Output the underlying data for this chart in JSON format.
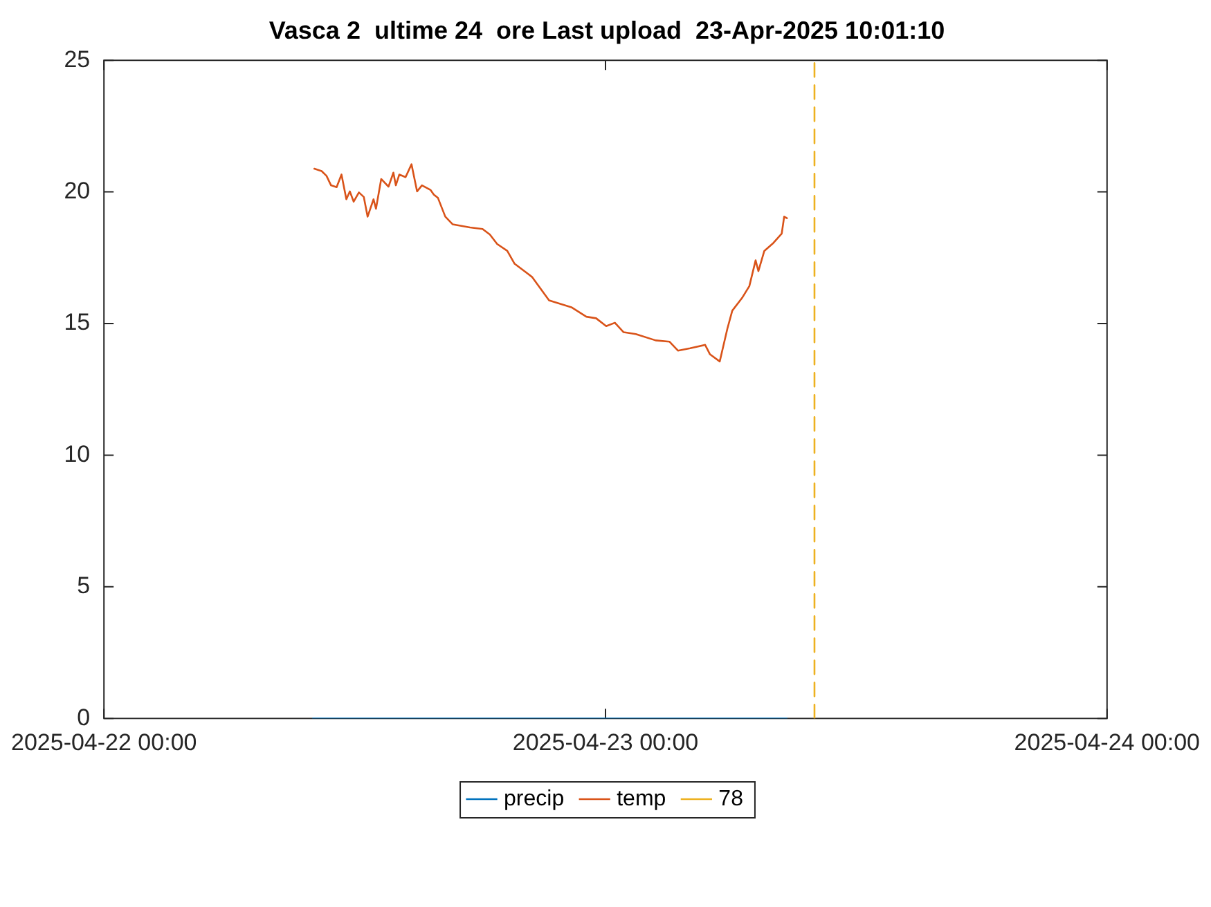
{
  "chart_data": {
    "type": "line",
    "title": "Vasca 2  ultime 24  ore Last upload  23-Apr-2025 10:01:10",
    "xlim": [
      "2025-04-22",
      "2025-04-24"
    ],
    "xticks": [
      {
        "value": "2025-04-22",
        "label": "2025-04-22 00:00"
      },
      {
        "value": "2025-04-23",
        "label": "2025-04-23 00:00"
      },
      {
        "value": "2025-04-24",
        "label": "2025-04-24 00:00"
      }
    ],
    "ylim": [
      0,
      25
    ],
    "yticks": [
      0,
      5,
      10,
      15,
      20,
      25
    ],
    "grid": false,
    "legend": "bottom",
    "marker": "none",
    "series": [
      {
        "name": "precip",
        "color": "#0072bd",
        "x": [
          "2025-04-22T10:00",
          "2025-04-23T08:40"
        ],
        "values": [
          0,
          0
        ]
      },
      {
        "name": "temp",
        "color": "#d95319",
        "x": [
          "2025-04-22T10:04",
          "2025-04-22T10:25",
          "2025-04-22T10:39",
          "2025-04-22T10:52",
          "2025-04-22T11:08",
          "2025-04-22T11:22",
          "2025-04-22T11:36",
          "2025-04-22T11:46",
          "2025-04-22T11:57",
          "2025-04-22T12:12",
          "2025-04-22T12:26",
          "2025-04-22T12:37",
          "2025-04-22T12:54",
          "2025-04-22T13:01",
          "2025-04-22T13:16",
          "2025-04-22T13:37",
          "2025-04-22T13:51",
          "2025-04-22T13:58",
          "2025-04-22T14:08",
          "2025-04-22T14:26",
          "2025-04-22T14:43",
          "2025-04-22T14:59",
          "2025-04-22T15:13",
          "2025-04-22T15:38",
          "2025-04-22T15:47",
          "2025-04-22T15:59",
          "2025-04-22T16:20",
          "2025-04-22T16:41",
          "2025-04-22T17:31",
          "2025-04-22T18:07",
          "2025-04-22T18:28",
          "2025-04-22T18:49",
          "2025-04-22T19:18",
          "2025-04-22T19:39",
          "2025-04-22T20:29",
          "2025-04-22T21:18",
          "2025-04-22T22:22",
          "2025-04-22T23:05",
          "2025-04-22T23:33",
          "2025-04-23T00:02",
          "2025-04-23T00:27",
          "2025-04-23T00:52",
          "2025-04-23T01:27",
          "2025-04-23T02:24",
          "2025-04-23T03:04",
          "2025-04-23T03:28",
          "2025-04-23T04:03",
          "2025-04-23T04:46",
          "2025-04-23T05:00",
          "2025-04-23T05:28",
          "2025-04-23T05:50",
          "2025-04-23T06:04",
          "2025-04-23T06:32",
          "2025-04-23T06:53",
          "2025-04-23T07:11",
          "2025-04-23T07:19",
          "2025-04-23T07:36",
          "2025-04-23T08:02",
          "2025-04-23T08:26",
          "2025-04-23T08:33",
          "2025-04-23T08:41"
        ],
        "values": [
          20.88,
          20.79,
          20.61,
          20.25,
          20.18,
          20.66,
          19.72,
          20.02,
          19.63,
          19.98,
          19.81,
          19.06,
          19.72,
          19.36,
          20.49,
          20.2,
          20.73,
          20.25,
          20.66,
          20.56,
          21.05,
          20.02,
          20.25,
          20.07,
          19.9,
          19.77,
          19.06,
          18.77,
          18.65,
          18.59,
          18.38,
          18.02,
          17.76,
          17.27,
          16.77,
          15.88,
          15.62,
          15.26,
          15.2,
          14.9,
          15.03,
          14.67,
          14.6,
          14.36,
          14.31,
          13.97,
          14.06,
          14.19,
          13.83,
          13.56,
          14.81,
          15.49,
          15.97,
          16.42,
          17.4,
          16.99,
          17.76,
          18.06,
          18.42,
          19.06,
          19
        ]
      },
      {
        "name": "78",
        "color": "#edb120",
        "line_style": "dashed",
        "x": [
          "2025-04-23T10:00",
          "2025-04-23T10:00"
        ],
        "values": [
          0,
          25
        ]
      }
    ]
  }
}
